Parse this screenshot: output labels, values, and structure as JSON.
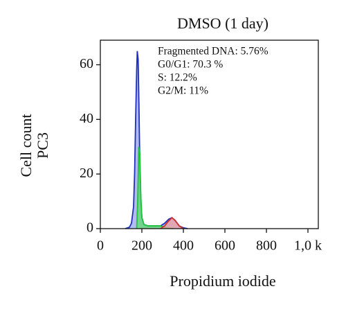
{
  "chart_data": {
    "type": "area",
    "title": "DMSO (1 day)",
    "ylabel": [
      "Cell count",
      "PC3"
    ],
    "xlabel": "Propidium iodide",
    "annotations": [
      "Fragmented DNA: 5.76%",
      "G0/G1: 70.3 %",
      "S: 12.2%",
      "G2/M: 11%"
    ],
    "xlim": [
      0,
      1050
    ],
    "ylim": [
      0,
      69
    ],
    "xticks": [
      0,
      200,
      400,
      600,
      800,
      {
        "value": 1000,
        "label": "1,0 k"
      }
    ],
    "yticks": [
      0,
      20,
      40,
      60
    ],
    "series": [
      {
        "color": "#1f2fbf",
        "fill": "#9aa6e8",
        "x": [
          120,
          140,
          150,
          160,
          165,
          170,
          175,
          178,
          182,
          186,
          190,
          195,
          200,
          210,
          230,
          260,
          290,
          310,
          330,
          345,
          360,
          380,
          400,
          420
        ],
        "values": [
          0,
          0.5,
          2,
          8,
          20,
          40,
          58,
          65,
          62,
          45,
          25,
          10,
          4,
          1.5,
          1,
          1,
          1,
          2,
          3.5,
          4,
          3,
          1,
          0.3,
          0
        ]
      },
      {
        "color": "#1ec43a",
        "fill": "#5fdc6f",
        "x": [
          175,
          180,
          185,
          190,
          195,
          200,
          210,
          230,
          260,
          290,
          310,
          330,
          350
        ],
        "values": [
          0,
          10,
          30,
          28,
          12,
          4,
          1.5,
          1,
          1,
          1,
          0.5,
          0.2,
          0
        ]
      },
      {
        "color": "#d03030",
        "fill": "#f0a0a0",
        "x": [
          290,
          310,
          325,
          345,
          360,
          380,
          400
        ],
        "values": [
          0,
          1,
          2.5,
          4,
          3,
          1,
          0
        ]
      }
    ]
  }
}
